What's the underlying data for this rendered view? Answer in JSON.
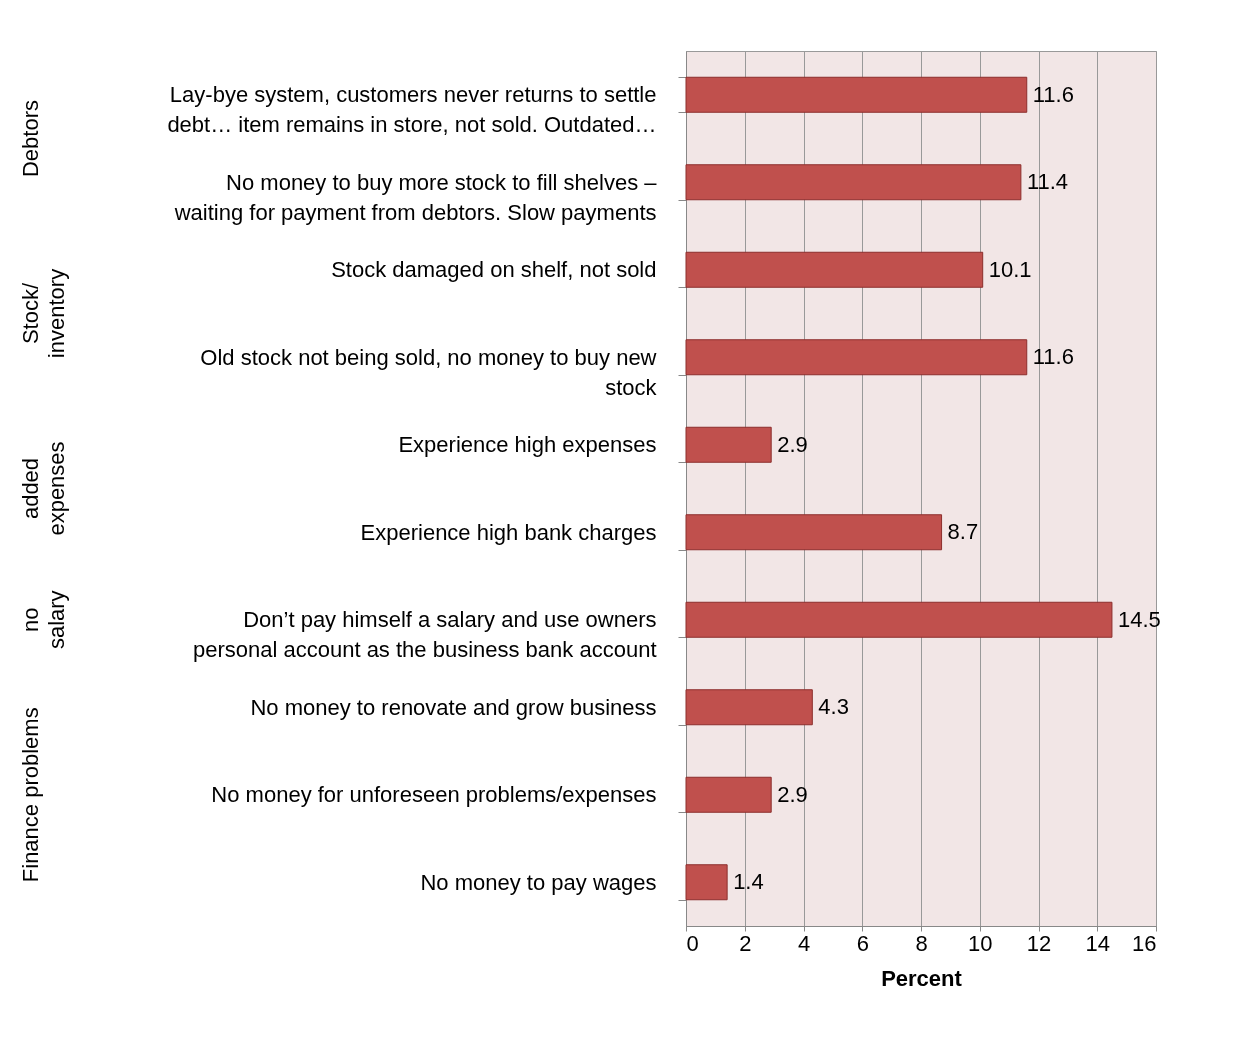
{
  "chart_data": {
    "type": "bar",
    "orientation": "horizontal",
    "xlabel": "Percent",
    "categories": [
      "Lay-bye system, customers never returns to settle debt… item remains in store, not sold. Outdated…",
      "No money to buy more stock to fill shelves – waiting for payment from debtors. Slow payments",
      "Stock damaged on shelf, not sold",
      "Old stock not being sold, no money to buy new stock",
      "Experience high expenses",
      "Experience high bank charges",
      "Don’t pay himself a salary and use owners personal account as the business bank account",
      "No money to renovate and grow business",
      "No money for unforeseen problems/expenses",
      "No money to pay wages"
    ],
    "values": [
      11.6,
      11.4,
      10.1,
      11.6,
      2.9,
      8.7,
      14.5,
      4.3,
      2.9,
      1.4
    ],
    "color": "#c0504d",
    "xlim": [
      0,
      16
    ],
    "xticks": [
      0,
      2,
      4,
      6,
      8,
      10,
      12,
      14,
      16
    ],
    "grid": "x",
    "data_labels": true,
    "annotations": [
      "Debtors",
      "Stock/ inventory",
      "added expenses",
      "no salary",
      "Finance problems"
    ]
  }
}
